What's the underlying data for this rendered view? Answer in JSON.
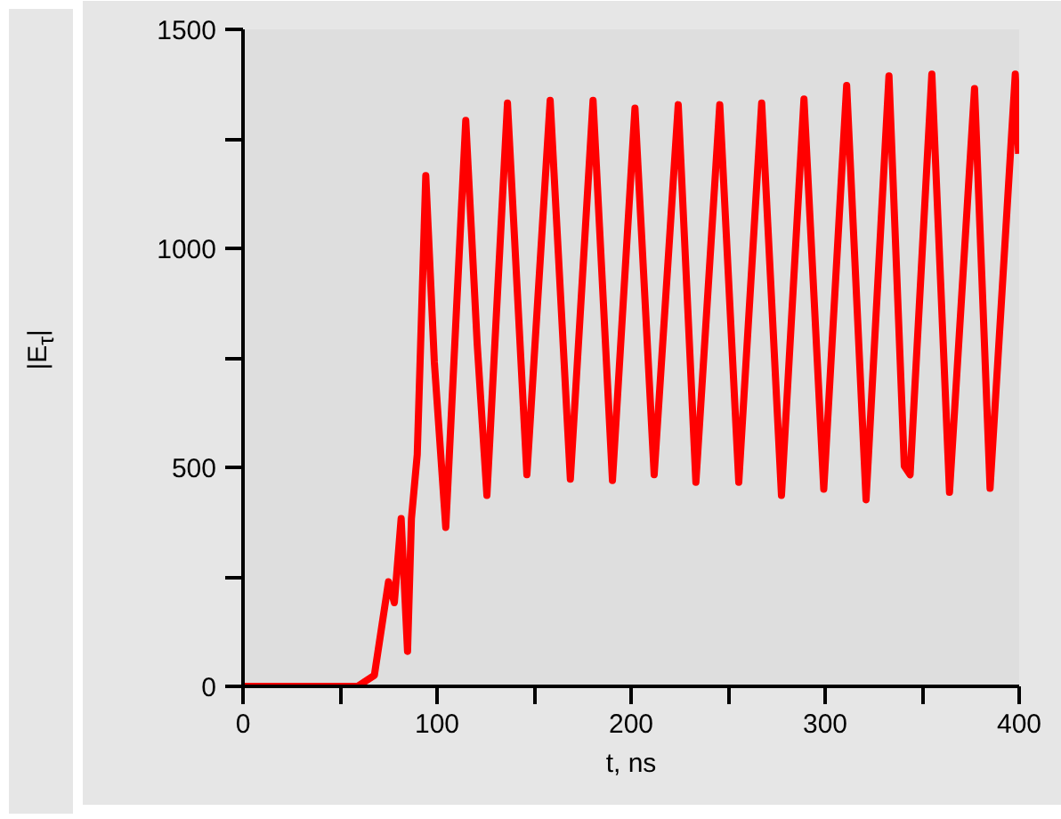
{
  "chart_data": {
    "type": "line",
    "xlabel": "t, ns",
    "ylabel": "|E$_{τ}$|",
    "xlim": [
      0,
      400
    ],
    "ylim": [
      0,
      1500
    ],
    "xticks": [
      0,
      {
        "value": 50,
        "label": null
      },
      100,
      {
        "value": 150,
        "label": null
      },
      200,
      {
        "value": 250,
        "label": null
      },
      300,
      {
        "value": 350,
        "label": null
      },
      400
    ],
    "yticks": [
      0,
      {
        "value": 250,
        "label": null
      },
      500,
      {
        "value": 750,
        "label": null
      },
      1000,
      {
        "value": 1250,
        "label": null
      },
      1500
    ],
    "grid": false,
    "marker": "none",
    "line_style": "solid",
    "series": [
      {
        "color": "#ff0000",
        "x": [
          0,
          59,
          67.7,
          75,
          78,
          81.5,
          84.8,
          86.8,
          89.8,
          94.2,
          98.6,
          104.5,
          114.8,
          120.7,
          125.7,
          136.3,
          146.3,
          158.3,
          168.7,
          180.4,
          190.4,
          202,
          211.9,
          224.3,
          233.4,
          245.7,
          255.5,
          267.3,
          277.5,
          289.1,
          299.3,
          311.1,
          321.1,
          332.9,
          340.8,
          343.8,
          355,
          364.1,
          377,
          385,
          398,
          399.7
        ],
        "values": [
          0,
          0,
          25,
          239,
          191,
          383,
          80,
          383,
          529,
          1166,
          741,
          363,
          1292,
          781,
          436,
          1332,
          483,
          1338,
          473,
          1338,
          470,
          1320,
          483,
          1328,
          466,
          1328,
          466,
          1332,
          436,
          1341,
          450,
          1372,
          426,
          1394,
          503,
          483,
          1398,
          443,
          1365,
          452,
          1398,
          1216
        ]
      }
    ]
  }
}
